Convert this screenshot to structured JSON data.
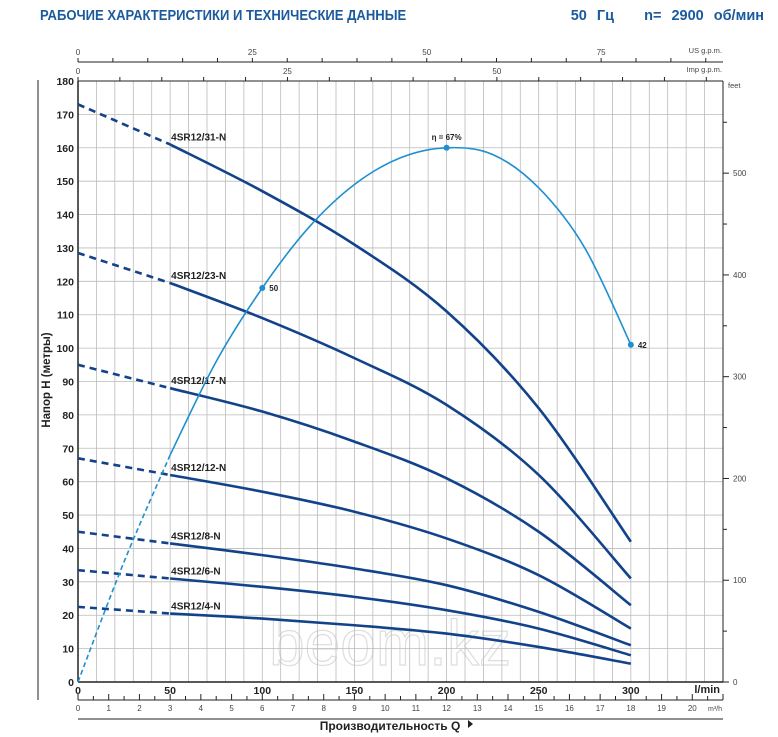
{
  "header": {
    "title": "РАБОЧИЕ ХАРАКТЕРИСТИКИ И ТЕХНИЧЕСКИЕ ДАННЫЕ",
    "frequency": "50 Гц",
    "speed": "n= 2900 об/мин"
  },
  "watermark": "beom.kz",
  "chart_data": {
    "type": "line",
    "ylabel": "Напор H (метры)",
    "xlabel": "Производительность Q",
    "x_unit": "l/min",
    "xlim": [
      0,
      350
    ],
    "ylim": [
      0,
      180
    ],
    "x_ticks": [
      0,
      50,
      100,
      150,
      200,
      250,
      300
    ],
    "y_ticks": [
      0,
      10,
      20,
      30,
      40,
      50,
      60,
      70,
      80,
      90,
      100,
      110,
      120,
      130,
      140,
      150,
      160,
      170,
      180
    ],
    "grid": true,
    "secondary_axes": {
      "us_gpm": {
        "unit": "US g.p.m.",
        "ticks": [
          0,
          25,
          50,
          75
        ]
      },
      "imp_gpm": {
        "unit": "Imp g.p.m.",
        "ticks": [
          0,
          25,
          50
        ]
      },
      "m3h": {
        "unit": "m³/h",
        "ticks": [
          0,
          1,
          2,
          3,
          4,
          5,
          6,
          7,
          8,
          9,
          10,
          11,
          12,
          13,
          14,
          15,
          16,
          17,
          18,
          19,
          20
        ]
      },
      "feet": {
        "unit": "feet",
        "ticks": [
          0,
          100,
          200,
          300,
          400,
          500
        ]
      }
    },
    "x": [
      0,
      50,
      100,
      150,
      200,
      250,
      300
    ],
    "series": [
      {
        "name": "4SR12/31-N",
        "values": [
          173,
          161,
          147,
          131,
          111,
          82,
          42
        ]
      },
      {
        "name": "4SR12/23-N",
        "values": [
          128.5,
          119.5,
          109,
          97,
          83,
          62,
          31
        ]
      },
      {
        "name": "4SR12/17-N",
        "values": [
          95,
          88,
          81,
          72,
          61,
          45,
          23
        ]
      },
      {
        "name": "4SR12/12-N",
        "values": [
          67,
          62,
          57,
          51,
          43,
          32,
          16
        ]
      },
      {
        "name": "4SR12/8-N",
        "values": [
          45,
          41.5,
          38,
          34,
          29,
          21,
          11
        ]
      },
      {
        "name": "4SR12/6-N",
        "values": [
          33.5,
          31,
          28.5,
          25.5,
          21.5,
          16,
          8
        ]
      },
      {
        "name": "4SR12/4-N",
        "values": [
          22.5,
          20.5,
          19,
          17,
          14.5,
          10.5,
          5.5
        ]
      }
    ],
    "dashed_below_x": 50,
    "efficiency": {
      "color": "#1e8fd0",
      "x": [
        0,
        25,
        50,
        75,
        100,
        125,
        150,
        175,
        200,
        225,
        250,
        275,
        300
      ],
      "values": [
        0,
        36,
        68,
        96,
        118,
        136,
        149,
        157,
        160,
        158,
        148,
        130,
        101
      ],
      "markers": [
        {
          "x": 100,
          "label": "50"
        },
        {
          "x": 200,
          "label": "η = 67%"
        },
        {
          "x": 300,
          "label": "42"
        }
      ]
    },
    "curve_color": "#12438a"
  }
}
